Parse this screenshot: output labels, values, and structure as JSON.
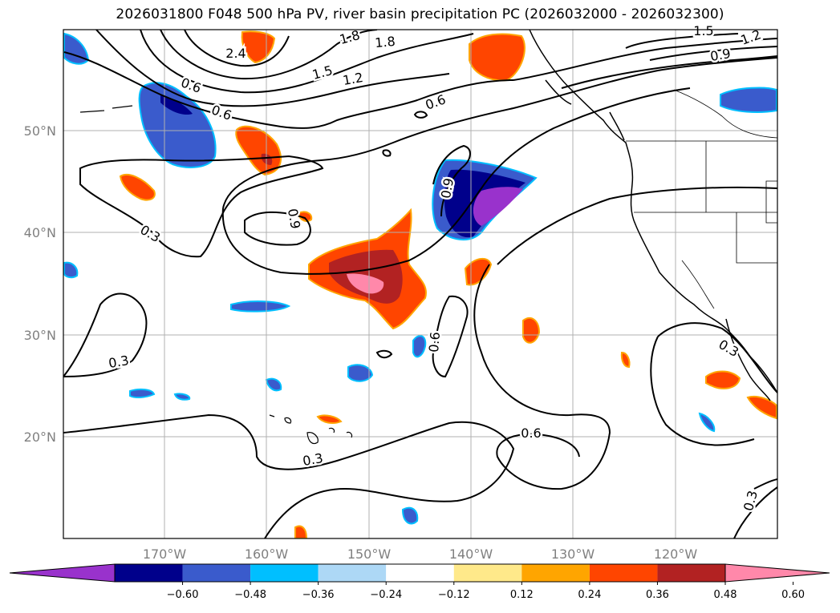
{
  "title": "2026031800 F048 500 hPa PV, river basin precipitation PC (2026032000 - 2026032300)",
  "axes": {
    "lon_labels": [
      "170°W",
      "160°W",
      "150°W",
      "140°W",
      "130°W",
      "120°W"
    ],
    "lat_labels": [
      "50°N",
      "40°N",
      "30°N",
      "20°N"
    ],
    "grid": true
  },
  "colorbar": {
    "ticks": [
      "−0.60",
      "−0.48",
      "−0.36",
      "−0.24",
      "−0.12",
      "0.12",
      "0.24",
      "0.36",
      "0.48",
      "0.60"
    ],
    "colors": [
      "#9932cc",
      "#00008b",
      "#3a5bcc",
      "#00bfff",
      "#add8f6",
      "#ffffff",
      "#ffe98a",
      "#ffa500",
      "#ff4500",
      "#b22222",
      "#ff88aa"
    ],
    "extend": "both"
  },
  "contour_labels": [
    "2.4",
    "1.8",
    "1.8",
    "1.5",
    "1.2",
    "0.6",
    "0.6",
    "1.5",
    "1.2",
    "0.9",
    "0.6",
    "0.9",
    "0.3",
    "0.9",
    "0.3",
    "0.6",
    "0.6",
    "0.3",
    "0.3",
    "0.3"
  ],
  "coastline_color": "#000000",
  "contour_color": "#000000"
}
